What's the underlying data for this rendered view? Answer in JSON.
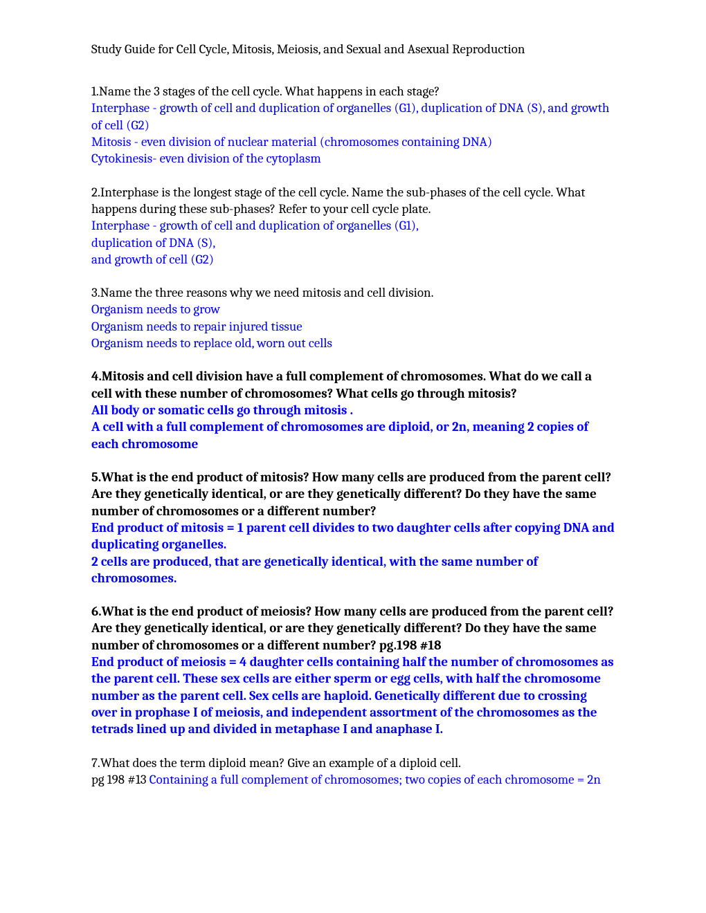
{
  "title": "Study Guide for Cell Cycle, Mitosis, Meiosis, and Sexual and Asexual Reproduction",
  "q1": {
    "question": "1.Name the 3 stages of the cell cycle.  What happens in each stage?",
    "a1": "Interphase - growth of cell and duplication of organelles (G1), duplication of DNA (S), and growth of cell (G2)",
    "a2": "Mitosis - even division of nuclear material (chromosomes containing DNA)",
    "a3": "Cytokinesis- even division of the cytoplasm"
  },
  "q2": {
    "question": "2.Interphase is the longest stage of the cell cycle.  Name the sub-phases of the cell cycle.  What happens during these sub-phases? Refer to your cell cycle plate.",
    "a1": "Interphase - growth of cell and duplication of organelles (G1),",
    "a2": "duplication of DNA (S),",
    "a3": "and growth of cell (G2)"
  },
  "q3": {
    "question": "3.Name the three reasons why we need mitosis and cell division.",
    "a1": "Organism needs to grow",
    "a2": "Organism needs to repair injured tissue",
    "a3": "Organism needs to replace old, worn out cells"
  },
  "q4": {
    "question": "4.Mitosis and cell division have a full complement of chromosomes.  What do we call a cell with these number of chromosomes?  What cells go through mitosis?",
    "a1": "All body or somatic cells go through mitosis .",
    "a2": "A cell with a full complement of chromosomes are diploid, or 2n, meaning 2 copies of each chromosome"
  },
  "q5": {
    "question": "5.What is the end product of mitosis?  How many cells are produced from the parent cell?  Are they genetically identical, or are they genetically different? Do they have the same number of chromosomes or a different number?",
    "a1": "End product of mitosis = 1 parent cell divides to two daughter cells after copying DNA and duplicating organelles.",
    "a2": "2 cells are produced, that are genetically identical, with the same number of chromosomes."
  },
  "q6": {
    "question": "6.What is the end product of meiosis?  How many cells are produced from the parent cell?  Are they genetically identical, or are they genetically different? Do they have the same number of chromosomes or a different number? pg.198 #18",
    "a1": "End product of meiosis = 4 daughter cells containing half the number of chromosomes as the parent cell.  These sex cells are either sperm or egg cells, with half the chromosome number as the parent cell. Sex cells are haploid. Genetically different due to crossing over in prophase I of meiosis, and independent assortment of the chromosomes as the tetrads lined up and divided in metaphase I and anaphase I."
  },
  "q7": {
    "question": "7.What does the term diploid mean? Give an example of a diploid cell.",
    "ref": "pg 198 #13 ",
    "answer": "Containing a full complement of chromosomes; two copies of each chromosome = 2n"
  }
}
